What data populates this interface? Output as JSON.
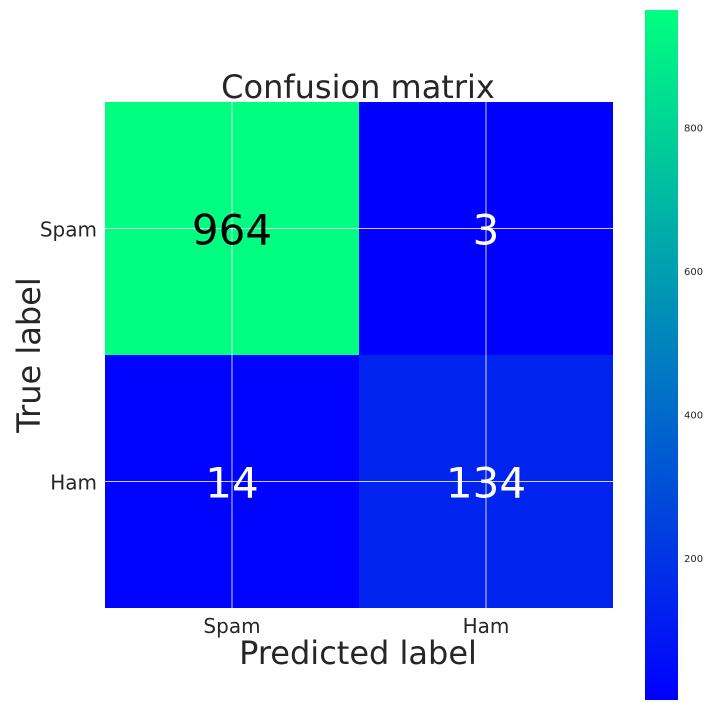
{
  "chart_data": {
    "type": "heatmap",
    "title": "Confusion matrix",
    "xlabel": "Predicted label",
    "ylabel": "True label",
    "x_categories": [
      "Spam",
      "Ham"
    ],
    "y_categories": [
      "Spam",
      "Ham"
    ],
    "matrix": [
      [
        964,
        3
      ],
      [
        14,
        134
      ]
    ],
    "colormap": "winter",
    "colormap_low": "#0000ff",
    "colormap_high": "#00ff80",
    "colorbar": {
      "range": [
        3,
        964
      ],
      "ticks": [
        200,
        400,
        600,
        800
      ]
    },
    "grid": true,
    "text_colors": {
      "on_light": "#000000",
      "on_dark": "#ffffff"
    }
  }
}
